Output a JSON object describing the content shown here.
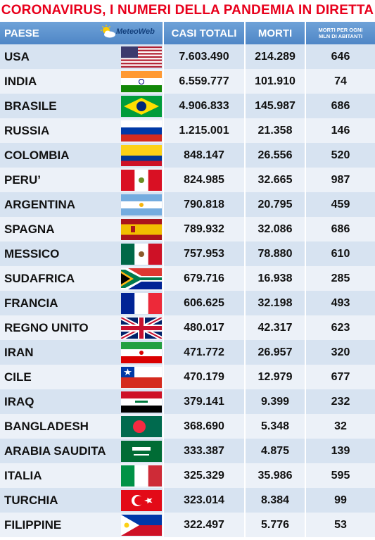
{
  "title": "CORONAVIRUS, I NUMERI DELLA PANDEMIA IN DIRETTA",
  "header": {
    "paese": "PAESE",
    "logo": "MeteoWeb",
    "casi": "CASI TOTALI",
    "morti": "MORTI",
    "ratio_line1": "MORTI PER OGNI",
    "ratio_line2": "MLN DI ABITANTI"
  },
  "rows": [
    {
      "paese": "USA",
      "casi": "7.603.490",
      "morti": "214.289",
      "ratio": "646",
      "flag_icon": "usa-flag-icon"
    },
    {
      "paese": "INDIA",
      "casi": "6.559.777",
      "morti": "101.910",
      "ratio": "74",
      "flag_icon": "india-flag-icon"
    },
    {
      "paese": "BRASILE",
      "casi": "4.906.833",
      "morti": "145.987",
      "ratio": "686",
      "flag_icon": "brazil-flag-icon"
    },
    {
      "paese": "RUSSIA",
      "casi": "1.215.001",
      "morti": "21.358",
      "ratio": "146",
      "flag_icon": "russia-flag-icon"
    },
    {
      "paese": "COLOMBIA",
      "casi": "848.147",
      "morti": "26.556",
      "ratio": "520",
      "flag_icon": "colombia-flag-icon"
    },
    {
      "paese": "PERU’",
      "casi": "824.985",
      "morti": "32.665",
      "ratio": "987",
      "flag_icon": "peru-flag-icon"
    },
    {
      "paese": "ARGENTINA",
      "casi": "790.818",
      "morti": "20.795",
      "ratio": "459",
      "flag_icon": "argentina-flag-icon"
    },
    {
      "paese": "SPAGNA",
      "casi": "789.932",
      "morti": "32.086",
      "ratio": "686",
      "flag_icon": "spain-flag-icon"
    },
    {
      "paese": "MESSICO",
      "casi": "757.953",
      "morti": "78.880",
      "ratio": "610",
      "flag_icon": "mexico-flag-icon"
    },
    {
      "paese": "SUDAFRICA",
      "casi": "679.716",
      "morti": "16.938",
      "ratio": "285",
      "flag_icon": "south-africa-flag-icon"
    },
    {
      "paese": "FRANCIA",
      "casi": "606.625",
      "morti": "32.198",
      "ratio": "493",
      "flag_icon": "france-flag-icon"
    },
    {
      "paese": "REGNO UNITO",
      "casi": "480.017",
      "morti": "42.317",
      "ratio": "623",
      "flag_icon": "uk-flag-icon"
    },
    {
      "paese": "IRAN",
      "casi": "471.772",
      "morti": "26.957",
      "ratio": "320",
      "flag_icon": "iran-flag-icon"
    },
    {
      "paese": "CILE",
      "casi": "470.179",
      "morti": "12.979",
      "ratio": "677",
      "flag_icon": "chile-flag-icon"
    },
    {
      "paese": "IRAQ",
      "casi": "379.141",
      "morti": "9.399",
      "ratio": "232",
      "flag_icon": "iraq-flag-icon"
    },
    {
      "paese": "BANGLADESH",
      "casi": "368.690",
      "morti": "5.348",
      "ratio": "32",
      "flag_icon": "bangladesh-flag-icon"
    },
    {
      "paese": "ARABIA SAUDITA",
      "casi": "333.387",
      "morti": "4.875",
      "ratio": "139",
      "flag_icon": "saudi-arabia-flag-icon"
    },
    {
      "paese": "ITALIA",
      "casi": "325.329",
      "morti": "35.986",
      "ratio": "595",
      "flag_icon": "italy-flag-icon"
    },
    {
      "paese": "TURCHIA",
      "casi": "323.014",
      "morti": "8.384",
      "ratio": "99",
      "flag_icon": "turkey-flag-icon"
    },
    {
      "paese": "FILIPPINE",
      "casi": "322.497",
      "morti": "5.776",
      "ratio": "53",
      "flag_icon": "philippines-flag-icon"
    }
  ],
  "colors": {
    "title": "#e8001c",
    "header_bg": "#4f86c6",
    "row_odd": "#d7e3f1",
    "row_even": "#ecf1f8"
  }
}
